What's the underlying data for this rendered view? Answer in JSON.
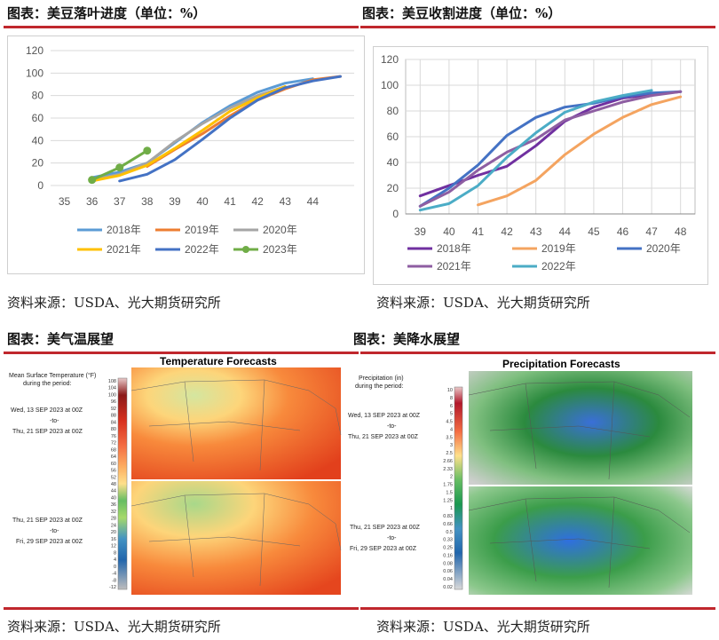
{
  "panels": {
    "defoliation": {
      "title": "图表：美豆落叶进度（单位：%）",
      "source": "资料来源：USDA、光大期货研究所"
    },
    "harvest": {
      "title": "图表：美豆收割进度（单位：%）",
      "source": "资料来源：USDA、光大期货研究所"
    },
    "temperature": {
      "title": "图表：美气温展望",
      "source": "资料来源：USDA、光大期货研究所"
    },
    "precipitation": {
      "title": "图表：美降水展望",
      "source": "资料来源：USDA、光大期货研究所"
    }
  },
  "chart_data": [
    {
      "id": "defoliation",
      "type": "line",
      "title": "",
      "xlabel": "",
      "ylabel": "",
      "x": [
        35,
        36,
        37,
        38,
        39,
        40,
        41,
        42,
        43,
        44
      ],
      "ylim": [
        0,
        120
      ],
      "yticks": [
        0,
        20,
        40,
        60,
        80,
        100,
        120
      ],
      "grid": true,
      "legend": "bottom",
      "series": [
        {
          "name": "2018年",
          "color": "#5b9bd5",
          "points": [
            [
              36,
              7
            ],
            [
              37,
              12
            ],
            [
              38,
              20
            ],
            [
              39,
              38
            ],
            [
              40,
              56
            ],
            [
              41,
              71
            ],
            [
              42,
              83
            ],
            [
              43,
              91
            ],
            [
              44,
              95
            ]
          ]
        },
        {
          "name": "2019年",
          "color": "#ed7d31",
          "points": [
            [
              38,
              17
            ],
            [
              39,
              32
            ],
            [
              40,
              46
            ],
            [
              41,
              62
            ],
            [
              42,
              76
            ],
            [
              43,
              86
            ],
            [
              44,
              94
            ],
            [
              45,
              97
            ]
          ]
        },
        {
          "name": "2020年",
          "color": "#a5a5a5",
          "points": [
            [
              36,
              5
            ],
            [
              37,
              10
            ],
            [
              38,
              20
            ],
            [
              39,
              39
            ],
            [
              40,
              55
            ],
            [
              41,
              69
            ],
            [
              42,
              80
            ],
            [
              43,
              88
            ]
          ]
        },
        {
          "name": "2021年",
          "color": "#ffc000",
          "points": [
            [
              36,
              4
            ],
            [
              37,
              9
            ],
            [
              38,
              18
            ],
            [
              39,
              33
            ],
            [
              40,
              49
            ],
            [
              41,
              66
            ],
            [
              42,
              78
            ],
            [
              43,
              88
            ]
          ]
        },
        {
          "name": "2022年",
          "color": "#4472c4",
          "points": [
            [
              37,
              4
            ],
            [
              38,
              10
            ],
            [
              39,
              23
            ],
            [
              40,
              41
            ],
            [
              41,
              60
            ],
            [
              42,
              76
            ],
            [
              43,
              87
            ],
            [
              44,
              93
            ],
            [
              45,
              97
            ]
          ]
        },
        {
          "name": "2023年",
          "color": "#70ad47",
          "points": [
            [
              36,
              5
            ],
            [
              37,
              16
            ],
            [
              38,
              31
            ]
          ]
        }
      ]
    },
    {
      "id": "harvest",
      "type": "line",
      "title": "",
      "xlabel": "",
      "ylabel": "",
      "x": [
        39,
        40,
        41,
        42,
        43,
        44,
        45,
        46,
        47,
        48
      ],
      "ylim": [
        0,
        120
      ],
      "yticks": [
        0,
        20,
        40,
        60,
        80,
        100,
        120
      ],
      "grid": true,
      "legend": "bottom",
      "series": [
        {
          "name": "2018年",
          "color": "#7030a0",
          "points": [
            [
              39,
              14
            ],
            [
              40,
              22
            ],
            [
              41,
              30
            ],
            [
              42,
              37
            ],
            [
              43,
              53
            ],
            [
              44,
              72
            ],
            [
              45,
              83
            ],
            [
              46,
              90
            ],
            [
              47,
              93
            ],
            [
              48,
              95
            ]
          ]
        },
        {
          "name": "2019年",
          "color": "#f4a460",
          "points": [
            [
              41,
              7
            ],
            [
              42,
              14
            ],
            [
              43,
              26
            ],
            [
              44,
              46
            ],
            [
              45,
              62
            ],
            [
              46,
              75
            ],
            [
              47,
              85
            ],
            [
              48,
              91
            ]
          ]
        },
        {
          "name": "2020年",
          "color": "#4472c4",
          "points": [
            [
              39,
              6
            ],
            [
              40,
              20
            ],
            [
              41,
              38
            ],
            [
              42,
              61
            ],
            [
              43,
              75
            ],
            [
              44,
              83
            ],
            [
              45,
              86
            ],
            [
              46,
              91
            ],
            [
              47,
              94
            ],
            [
              48,
              95
            ]
          ]
        },
        {
          "name": "2021年",
          "color": "#8e5ea2",
          "points": [
            [
              39,
              6
            ],
            [
              40,
              17
            ],
            [
              41,
              34
            ],
            [
              42,
              48
            ],
            [
              43,
              58
            ],
            [
              44,
              73
            ],
            [
              45,
              80
            ],
            [
              46,
              87
            ],
            [
              47,
              92
            ],
            [
              48,
              95
            ]
          ]
        },
        {
          "name": "2022年",
          "color": "#4bacc6",
          "points": [
            [
              39,
              3
            ],
            [
              40,
              8
            ],
            [
              41,
              22
            ],
            [
              42,
              44
            ],
            [
              43,
              63
            ],
            [
              44,
              79
            ],
            [
              45,
              87
            ],
            [
              46,
              92
            ],
            [
              47,
              96
            ]
          ]
        }
      ]
    }
  ],
  "maps": {
    "temperature": {
      "heading": "Temperature Forecasts",
      "legend_title_1": "Mean Surface Temperature (°F)",
      "legend_title_2": "during the period:",
      "period1_start": "Wed, 13 SEP 2023 at 00Z",
      "period1_to": "-to-",
      "period1_end": "Thu, 21 SEP 2023 at 00Z",
      "period2_start": "Thu, 21 SEP 2023 at 00Z",
      "period2_to": "-to-",
      "period2_end": "Fri, 29 SEP 2023 at 00Z",
      "scale_labels": [
        "108",
        "104",
        "100",
        "96",
        "92",
        "88",
        "84",
        "80",
        "76",
        "72",
        "68",
        "64",
        "60",
        "56",
        "52",
        "48",
        "44",
        "40",
        "36",
        "32",
        "28",
        "24",
        "20",
        "16",
        "12",
        "8",
        "4",
        "0",
        "-4",
        "-8",
        "-12"
      ]
    },
    "precipitation": {
      "heading": "Precipitation Forecasts",
      "legend_title_1": "Precipitation (in)",
      "legend_title_2": "during the period:",
      "period1_start": "Wed, 13 SEP 2023 at 00Z",
      "period1_to": "-to-",
      "period1_end": "Thu, 21 SEP 2023 at 00Z",
      "period2_start": "Thu, 21 SEP 2023 at 00Z",
      "period2_to": "-to-",
      "period2_end": "Fri, 29 SEP 2023 at 00Z",
      "scale_labels": [
        "10",
        "8",
        "6",
        "5",
        "4.5",
        "4",
        "3.5",
        "3",
        "2.5",
        "2.66",
        "2.33",
        "2",
        "1.75",
        "1.5",
        "1.25",
        "1",
        "0.83",
        "0.66",
        "0.5",
        "0.33",
        "0.25",
        "0.16",
        "0.08",
        "0.06",
        "0.04",
        "0.02"
      ]
    }
  }
}
